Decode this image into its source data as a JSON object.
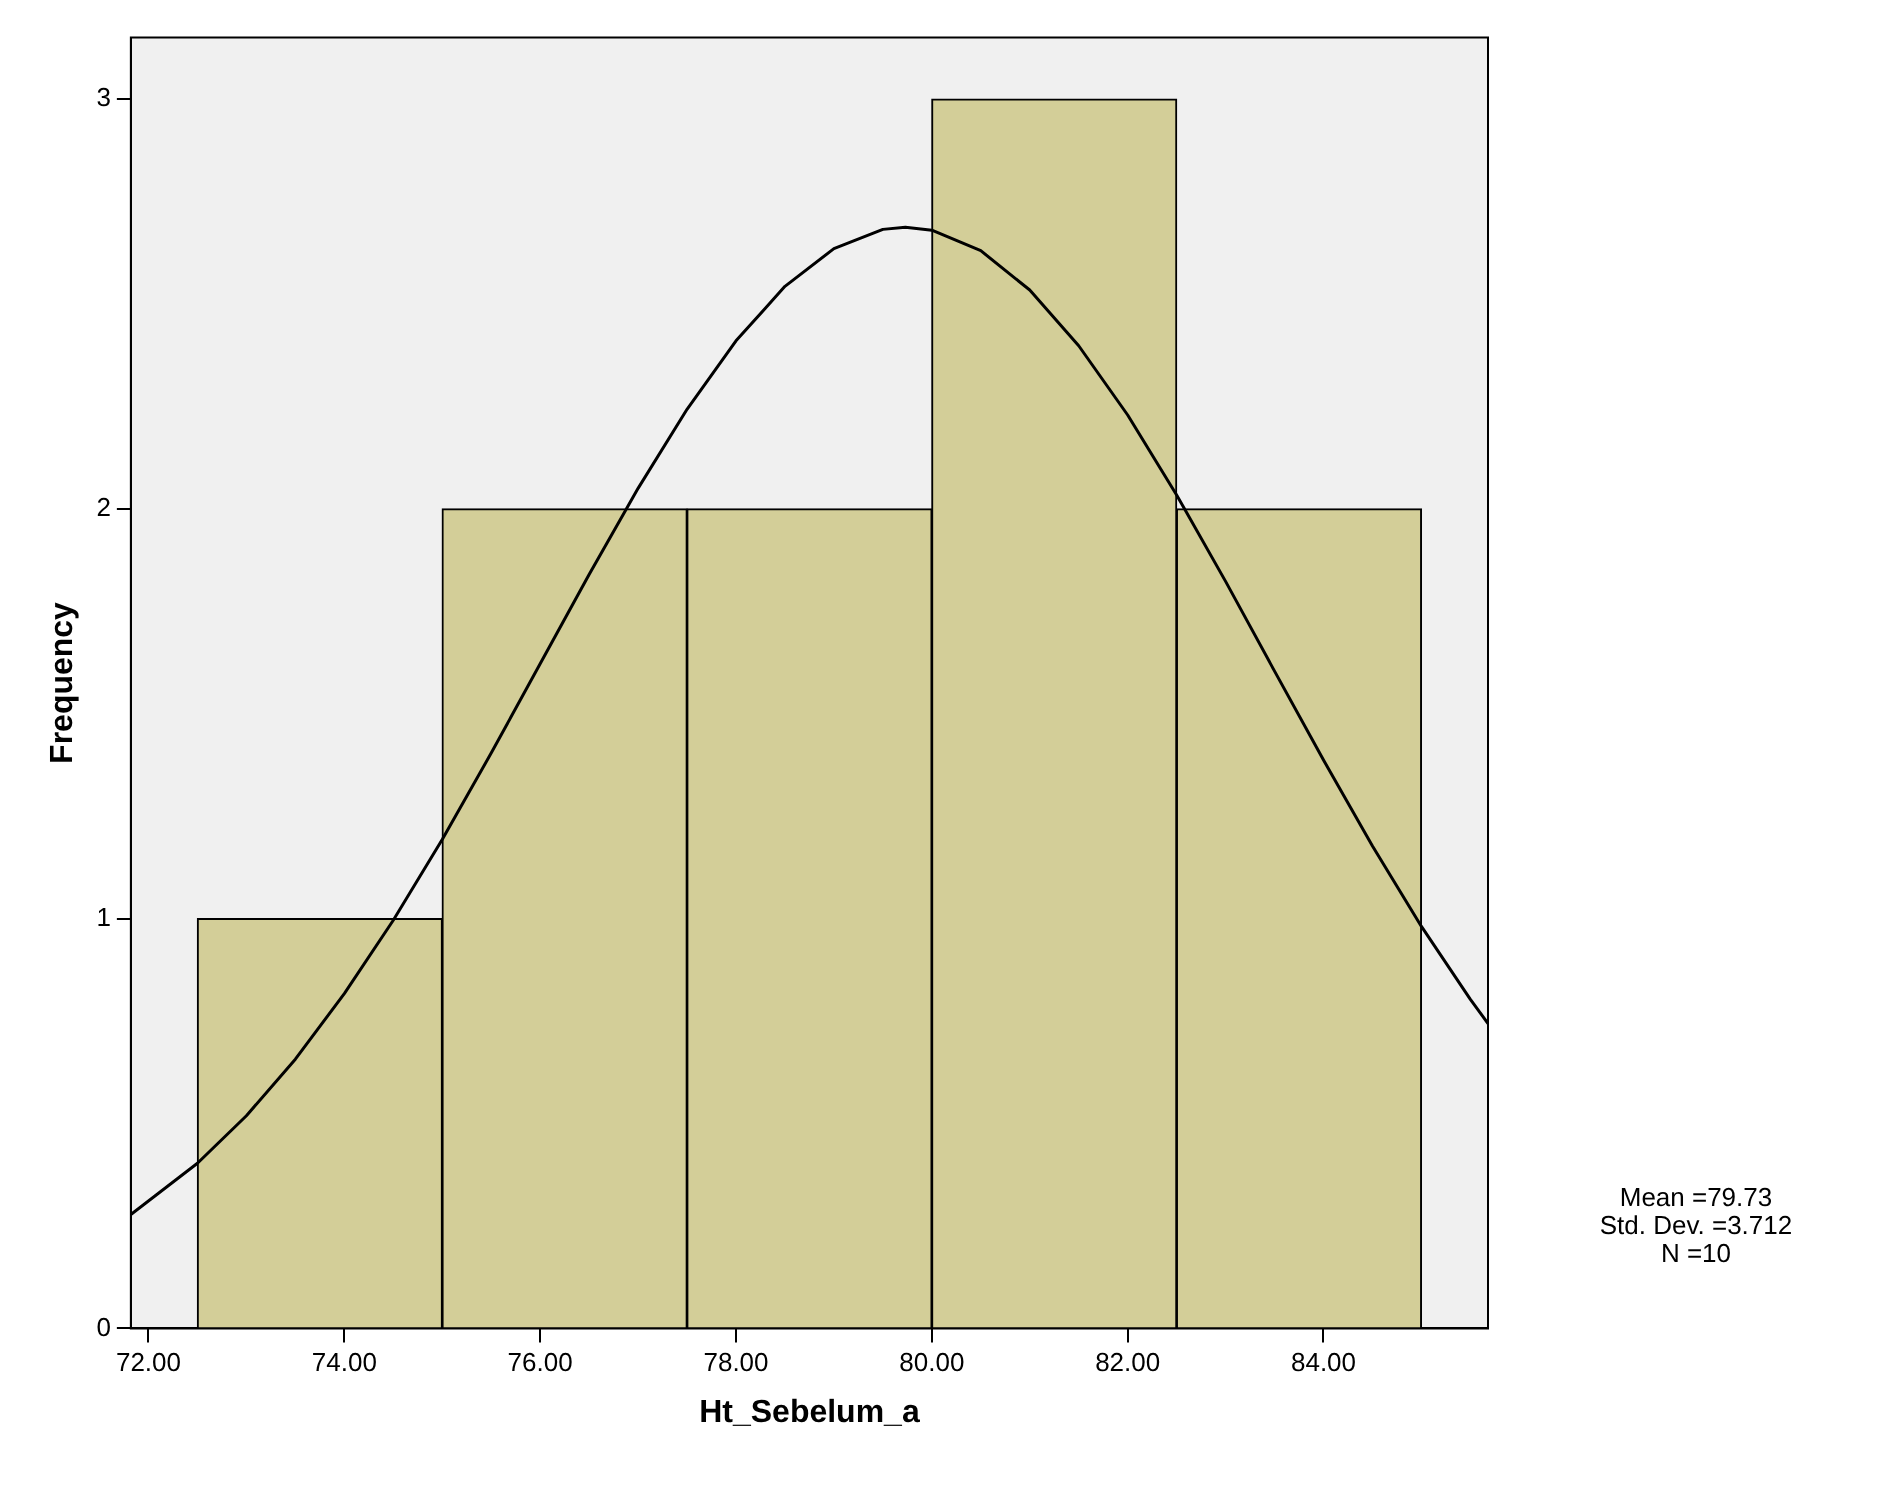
{
  "chart_data": {
    "type": "histogram",
    "xlabel": "Ht_Sebelum_a",
    "ylabel": "Frequency",
    "bins": [
      72.5,
      75,
      77.5,
      80,
      82.5,
      85
    ],
    "values": [
      1,
      2,
      2,
      3,
      2
    ],
    "color": "#d3ce98",
    "series": [
      {
        "type": "line",
        "color": "#000000",
        "x": [
          71.82,
          72.5,
          73,
          73.5,
          74,
          74.5,
          75,
          75.5,
          76,
          76.5,
          77,
          77.5,
          78,
          78.5,
          79,
          79.5,
          79.73,
          80,
          80.5,
          81,
          81.5,
          82,
          82.5,
          83,
          83.5,
          84,
          84.5,
          85,
          85.5,
          85.68
        ],
        "values": [
          0.278,
          0.403,
          0.519,
          0.657,
          0.817,
          0.996,
          1.193,
          1.404,
          1.622,
          1.84,
          2.05,
          2.243,
          2.41,
          2.543,
          2.635,
          2.682,
          2.687,
          2.68,
          2.63,
          2.534,
          2.398,
          2.229,
          2.034,
          1.823,
          1.604,
          1.387,
          1.177,
          0.981,
          0.803,
          0.744
        ]
      }
    ],
    "xlim": [
      71.82,
      85.68
    ],
    "ylim": [
      0,
      3.15
    ],
    "xticks": [
      {
        "value": 72,
        "label": "72.00"
      },
      {
        "value": 74,
        "label": "74.00"
      },
      {
        "value": 76,
        "label": "76.00"
      },
      {
        "value": 78,
        "label": "78.00"
      },
      {
        "value": 80,
        "label": "80.00"
      },
      {
        "value": 82,
        "label": "82.00"
      },
      {
        "value": 84,
        "label": "84.00"
      }
    ],
    "yticks": [
      0,
      1,
      2,
      3
    ],
    "grid": false,
    "legend": false,
    "marker": "none",
    "line_style": "solid",
    "annotations": [
      "Mean =79.73",
      "Std. Dev. =3.712",
      "N =10"
    ]
  }
}
